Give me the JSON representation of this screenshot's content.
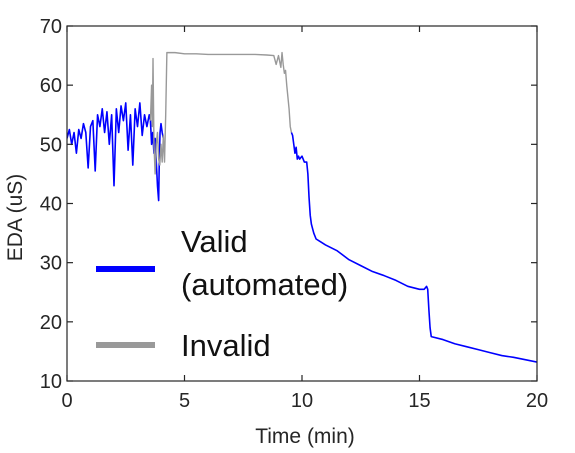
{
  "chart_data": {
    "type": "line",
    "xlabel": "Time (min)",
    "ylabel": "EDA (uS)",
    "xlim": [
      0,
      20
    ],
    "ylim": [
      10,
      70
    ],
    "xticks": [
      0,
      5,
      10,
      15,
      20
    ],
    "yticks": [
      10,
      20,
      30,
      40,
      50,
      60,
      70
    ],
    "grid": false,
    "legend_position": "lower-left",
    "series": [
      {
        "name": "Valid (automated)",
        "legend_label_lines": [
          "Valid",
          "(automated)"
        ],
        "color": "#0000ff",
        "segments": [
          [
            [
              0.0,
              51.0
            ],
            [
              0.1,
              52.5
            ],
            [
              0.2,
              50.0
            ],
            [
              0.3,
              52.0
            ],
            [
              0.4,
              48.5
            ],
            [
              0.5,
              52.5
            ],
            [
              0.6,
              51.0
            ],
            [
              0.7,
              53.5
            ],
            [
              0.8,
              52.0
            ],
            [
              0.9,
              46.0
            ],
            [
              1.0,
              53.0
            ],
            [
              1.1,
              54.0
            ],
            [
              1.2,
              45.5
            ],
            [
              1.3,
              55.0
            ],
            [
              1.4,
              53.0
            ],
            [
              1.5,
              56.0
            ],
            [
              1.6,
              52.0
            ],
            [
              1.7,
              55.5
            ],
            [
              1.8,
              50.0
            ],
            [
              1.9,
              55.0
            ],
            [
              2.0,
              43.0
            ],
            [
              2.1,
              56.0
            ],
            [
              2.2,
              52.0
            ],
            [
              2.3,
              56.5
            ],
            [
              2.4,
              54.0
            ],
            [
              2.5,
              57.0
            ],
            [
              2.6,
              49.0
            ],
            [
              2.7,
              55.0
            ],
            [
              2.8,
              46.5
            ],
            [
              2.9,
              56.0
            ],
            [
              3.0,
              53.0
            ],
            [
              3.1,
              57.0
            ],
            [
              3.2,
              51.5
            ],
            [
              3.3,
              55.0
            ],
            [
              3.4,
              53.0
            ],
            [
              3.5,
              55.0
            ],
            [
              3.55,
              54.0
            ],
            [
              3.6,
              50.0
            ],
            [
              3.65,
              52.0
            ],
            [
              3.7,
              48.5
            ],
            [
              3.75,
              51.0
            ],
            [
              3.8,
              47.0
            ],
            [
              3.85,
              43.0
            ],
            [
              3.9,
              40.5
            ],
            [
              3.93,
              48.0
            ],
            [
              3.96,
              52.0
            ],
            [
              4.0,
              53.5
            ],
            [
              4.05,
              52.0
            ],
            [
              4.1,
              51.0
            ]
          ],
          [
            [
              9.55,
              52.0
            ],
            [
              9.6,
              51.5
            ],
            [
              9.65,
              50.0
            ],
            [
              9.7,
              48.5
            ],
            [
              9.75,
              49.5
            ],
            [
              9.8,
              47.5
            ],
            [
              9.85,
              48.0
            ],
            [
              9.9,
              47.5
            ],
            [
              10.0,
              48.0
            ],
            [
              10.1,
              47.0
            ],
            [
              10.2,
              47.0
            ],
            [
              10.25,
              45.0
            ],
            [
              10.3,
              41.0
            ],
            [
              10.35,
              38.0
            ],
            [
              10.4,
              36.5
            ],
            [
              10.5,
              35.0
            ],
            [
              10.6,
              34.0
            ],
            [
              10.8,
              33.5
            ],
            [
              11.0,
              33.0
            ],
            [
              11.5,
              32.0
            ],
            [
              12.0,
              30.5
            ],
            [
              12.5,
              29.5
            ],
            [
              13.0,
              28.5
            ],
            [
              13.5,
              27.8
            ],
            [
              14.0,
              27.0
            ],
            [
              14.5,
              26.0
            ],
            [
              15.0,
              25.5
            ],
            [
              15.2,
              25.5
            ],
            [
              15.3,
              26.0
            ],
            [
              15.35,
              25.5
            ],
            [
              15.4,
              22.0
            ],
            [
              15.45,
              19.0
            ],
            [
              15.5,
              17.5
            ],
            [
              16.0,
              17.0
            ],
            [
              16.5,
              16.3
            ],
            [
              17.0,
              15.8
            ],
            [
              17.5,
              15.3
            ],
            [
              18.0,
              14.8
            ],
            [
              18.5,
              14.3
            ],
            [
              19.0,
              14.0
            ],
            [
              19.5,
              13.6
            ],
            [
              20.0,
              13.2
            ]
          ]
        ]
      },
      {
        "name": "Invalid",
        "legend_label_lines": [
          "Invalid"
        ],
        "color": "#999999",
        "segments": [
          [
            [
              3.55,
              54.0
            ],
            [
              3.6,
              60.0
            ],
            [
              3.63,
              53.0
            ],
            [
              3.66,
              64.5
            ],
            [
              3.7,
              50.0
            ],
            [
              3.75,
              45.0
            ],
            [
              3.8,
              50.0
            ],
            [
              3.85,
              52.0
            ],
            [
              3.9,
              47.5
            ],
            [
              3.95,
              46.5
            ],
            [
              4.0,
              50.0
            ],
            [
              4.05,
              47.0
            ],
            [
              4.1,
              51.5
            ],
            [
              4.15,
              47.0
            ],
            [
              4.2,
              55.0
            ],
            [
              4.25,
              65.5
            ],
            [
              4.4,
              65.5
            ],
            [
              4.6,
              65.5
            ],
            [
              5.0,
              65.3
            ],
            [
              5.5,
              65.3
            ],
            [
              6.0,
              65.2
            ],
            [
              6.5,
              65.2
            ],
            [
              7.0,
              65.2
            ],
            [
              7.5,
              65.2
            ],
            [
              8.0,
              65.2
            ],
            [
              8.5,
              65.1
            ],
            [
              8.8,
              65.0
            ],
            [
              8.9,
              63.5
            ],
            [
              9.0,
              65.0
            ],
            [
              9.1,
              63.0
            ],
            [
              9.15,
              65.5
            ],
            [
              9.2,
              63.5
            ],
            [
              9.25,
              62.0
            ],
            [
              9.3,
              62.5
            ],
            [
              9.35,
              60.0
            ],
            [
              9.4,
              58.0
            ],
            [
              9.45,
              56.0
            ],
            [
              9.5,
              53.0
            ],
            [
              9.55,
              52.0
            ]
          ]
        ]
      }
    ]
  }
}
